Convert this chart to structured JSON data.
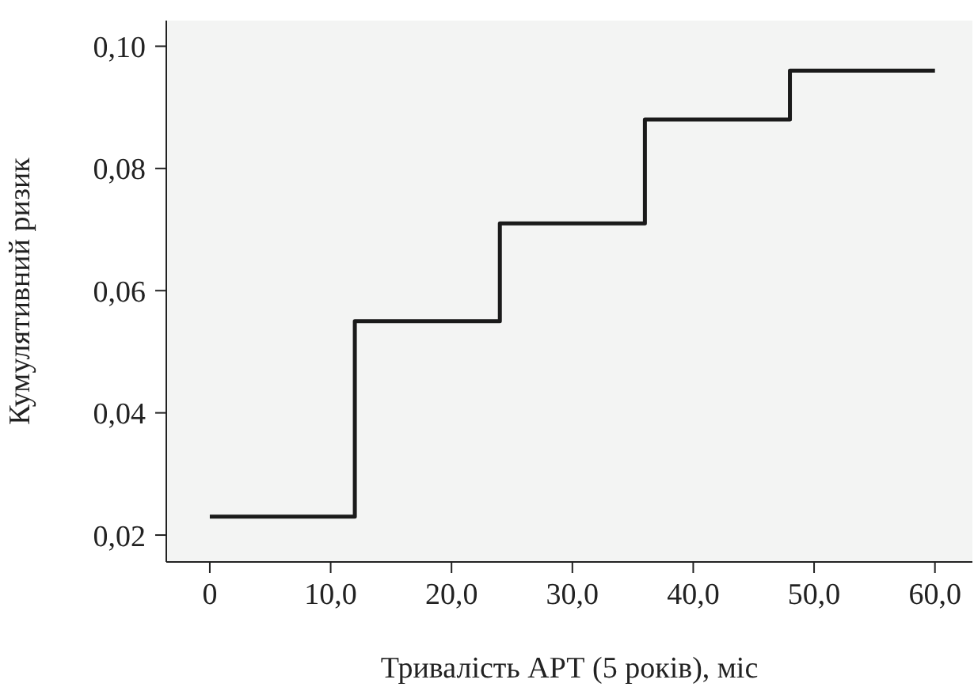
{
  "chart_data": {
    "type": "step",
    "xlabel": "Тривалість АРТ (5 років), міс",
    "ylabel": "Кумулятивний ризик",
    "x": [
      0,
      12,
      24,
      36,
      48,
      60
    ],
    "series": [
      {
        "color": "#1a1a1a",
        "values": [
          0.023,
          0.055,
          0.071,
          0.088,
          0.096,
          0.096
        ]
      }
    ],
    "xlim": [
      -3.6,
      63.1
    ],
    "xticks": [
      {
        "value": 0,
        "label": "0"
      },
      {
        "value": 10,
        "label": "10,0"
      },
      {
        "value": 20,
        "label": "20,0"
      },
      {
        "value": 30,
        "label": "30,0"
      },
      {
        "value": 40,
        "label": "40,0"
      },
      {
        "value": 50,
        "label": "50,0"
      },
      {
        "value": 60,
        "label": "60,0"
      }
    ],
    "ylim": [
      0.0156,
      0.1042
    ],
    "yticks": [
      {
        "value": 0.02,
        "label": "0,02"
      },
      {
        "value": 0.04,
        "label": "0,04"
      },
      {
        "value": 0.06,
        "label": "0,06"
      },
      {
        "value": 0.08,
        "label": "0,08"
      },
      {
        "value": 0.1,
        "label": "0,10"
      }
    ],
    "grid": false,
    "legend": false,
    "marker": "none",
    "line_style": "solid"
  }
}
